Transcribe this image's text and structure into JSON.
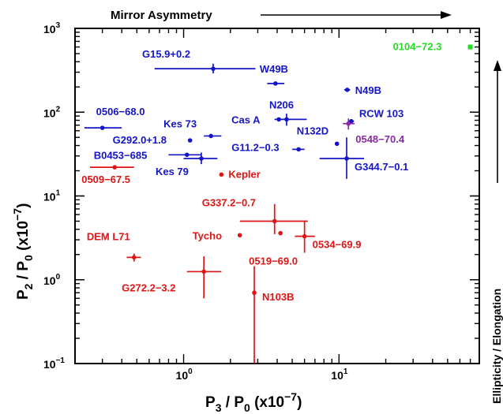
{
  "colors": {
    "blue": "#1515c8",
    "red": "#e01414",
    "green": "#22dd22",
    "purple": "#8a2aa8",
    "black": "#000000"
  },
  "chart_data": {
    "type": "scatter",
    "xlabel_main": "P",
    "xlabel_sub": "3",
    "xlabel_mid": " / P",
    "xlabel_sub2": "0",
    "xlabel_tail": " (x10",
    "xlabel_exp": "−7",
    "xlabel_close": ")",
    "ylabel_main": "P",
    "ylabel_sub": "2",
    "ylabel_mid": " / P",
    "ylabel_sub2": "0",
    "ylabel_tail": " (x10",
    "ylabel_exp": "−7",
    "ylabel_close": ")",
    "top_arrow_label": "Mirror Asymmetry",
    "right_arrow_label": "Ellipticity / Elongation",
    "x_scale": "log",
    "y_scale": "log",
    "xlim": [
      0.2,
      80
    ],
    "ylim": [
      0.1,
      1000
    ],
    "x_ticks": [
      {
        "v": 1,
        "label": "10",
        "exp": "0"
      },
      {
        "v": 10,
        "label": "10",
        "exp": "1"
      }
    ],
    "y_ticks": [
      {
        "v": 0.1,
        "label": "10",
        "exp": "−1"
      },
      {
        "v": 1,
        "label": "10",
        "exp": "0"
      },
      {
        "v": 10,
        "label": "10",
        "exp": "1"
      },
      {
        "v": 100,
        "label": "10",
        "exp": "2"
      },
      {
        "v": 1000,
        "label": "10",
        "exp": "3"
      }
    ],
    "points": [
      {
        "name": "0104−72.3",
        "x": 70,
        "y": 600,
        "color": "green",
        "marker": "square",
        "label_dx": -98,
        "label_dy": 4
      },
      {
        "name": "G15.9+0.2",
        "x": 1.55,
        "y": 330,
        "xerr": [
          0.65,
          2.9
        ],
        "yerr": [
          290,
          380
        ],
        "color": "blue",
        "label_dx": -90,
        "label_dy": -14
      },
      {
        "name": "W49B",
        "x": 3.9,
        "y": 220,
        "xerr": [
          3.45,
          4.45
        ],
        "color": "blue",
        "label_dx": -20,
        "label_dy": -14
      },
      {
        "name": "N49B",
        "x": 11.3,
        "y": 185,
        "xerr": [
          10.8,
          11.8
        ],
        "color": "blue",
        "label_dx": 10,
        "label_dy": 5
      },
      {
        "name": "0506−68.0",
        "x": 0.3,
        "y": 65,
        "xerr": [
          0.23,
          0.4
        ],
        "color": "blue",
        "label_dx": -8,
        "label_dy": -16
      },
      {
        "name": "N206",
        "x": 4.6,
        "y": 82,
        "xerr": [
          3.85,
          6.2
        ],
        "yerr": [
          69,
          96
        ],
        "color": "blue",
        "label_dx": -22,
        "label_dy": -14
      },
      {
        "name": "Cas A",
        "x": 4.1,
        "y": 82,
        "color": "blue",
        "label_dx": -60,
        "label_dy": 5
      },
      {
        "name": "RCW 103",
        "x": 12.0,
        "y": 78,
        "xerr": [
          11.5,
          12.5
        ],
        "color": "blue",
        "label_dx": 10,
        "label_dy": -5
      },
      {
        "name": "0548−70.4",
        "x": 11.5,
        "y": 73,
        "xerr": [
          10.6,
          12.6
        ],
        "yerr": [
          62,
          84
        ],
        "color": "purple",
        "label_dx": 9,
        "label_dy": 24
      },
      {
        "name": "Kes 73",
        "x": 1.5,
        "y": 52,
        "xerr": [
          1.35,
          1.75
        ],
        "color": "blue",
        "label_dx": -60,
        "label_dy": -11
      },
      {
        "name": "G292.0+1.8",
        "x": 1.1,
        "y": 46,
        "color": "blue",
        "label_dx": -98,
        "label_dy": 4
      },
      {
        "name": "N132D",
        "x": 9.7,
        "y": 42,
        "color": "blue",
        "label_dx": -51,
        "label_dy": -12
      },
      {
        "name": "G11.2−0.3",
        "x": 5.5,
        "y": 36,
        "xerr": [
          5.0,
          6.0
        ],
        "color": "blue",
        "label_dx": -85,
        "label_dy": 2
      },
      {
        "name": "B0453−685",
        "x": 1.05,
        "y": 31,
        "xerr": [
          0.8,
          1.3
        ],
        "color": "blue",
        "label_dx": -118,
        "label_dy": 5
      },
      {
        "name": "Kes 79",
        "x": 1.3,
        "y": 28,
        "xerr": [
          1.0,
          1.65
        ],
        "yerr": [
          24,
          33
        ],
        "color": "blue",
        "label_dx": -58,
        "label_dy": 21
      },
      {
        "name": "G344.7−0.1",
        "x": 11.2,
        "y": 28,
        "xerr": [
          7.5,
          14.5
        ],
        "yerr": [
          16,
          50
        ],
        "color": "blue",
        "label_dx": 10,
        "label_dy": 15
      },
      {
        "name": "0509−67.5",
        "x": 0.36,
        "y": 22,
        "xerr": [
          0.25,
          0.48
        ],
        "color": "red",
        "label_dx": -42,
        "label_dy": 20
      },
      {
        "name": "Kepler",
        "x": 1.75,
        "y": 18,
        "color": "red",
        "label_dx": 9,
        "label_dy": 4
      },
      {
        "name": "G337.2−0.7",
        "x": 3.85,
        "y": 5.0,
        "xerr": [
          2.3,
          6.3
        ],
        "yerr": [
          3.5,
          8.0
        ],
        "color": "red",
        "label_dx": -92,
        "label_dy": -19
      },
      {
        "name": "Tycho",
        "x": 2.3,
        "y": 3.4,
        "color": "red",
        "label_dx": -60,
        "label_dy": 5
      },
      {
        "name": "0519−69.0",
        "x": 4.2,
        "y": 3.6,
        "color": "red",
        "label_dx": -40,
        "label_dy": 40
      },
      {
        "name": "0534−69.9",
        "x": 6.0,
        "y": 3.3,
        "xerr": [
          5.2,
          7.0
        ],
        "yerr": [
          2.1,
          5.0
        ],
        "color": "red",
        "label_dx": 10,
        "label_dy": 15
      },
      {
        "name": "DEM L71",
        "x": 0.48,
        "y": 1.85,
        "xerr": [
          0.43,
          0.53
        ],
        "yerr": [
          1.65,
          2.05
        ],
        "color": "red",
        "label_dx": -60,
        "label_dy": -22
      },
      {
        "name": "G272.2−3.2",
        "x": 1.35,
        "y": 1.25,
        "xerr": [
          1.05,
          1.75
        ],
        "yerr": [
          0.6,
          1.9
        ],
        "color": "red",
        "label_dx": -104,
        "label_dy": 25
      },
      {
        "name": "N103B",
        "x": 2.85,
        "y": 0.7,
        "yerr": [
          0.1,
          1.45
        ],
        "color": "red",
        "label_dx": 10,
        "label_dy": 10
      }
    ]
  }
}
